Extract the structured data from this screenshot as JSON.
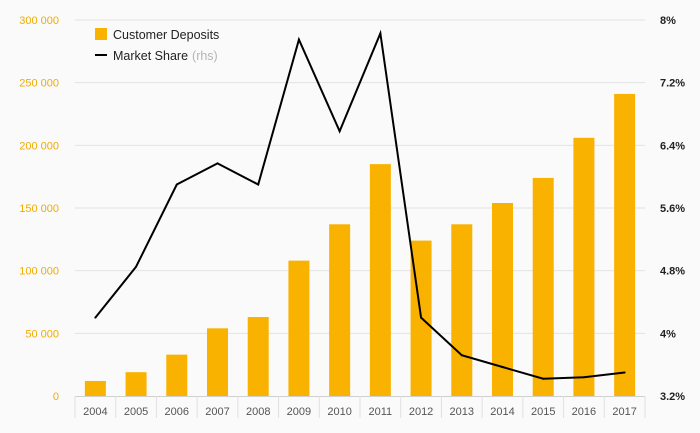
{
  "chart_data": {
    "type": "bar",
    "title": "",
    "categories": [
      "2004",
      "2005",
      "2006",
      "2007",
      "2008",
      "2009",
      "2010",
      "2011",
      "2012",
      "2013",
      "2014",
      "2015",
      "2016",
      "2017"
    ],
    "series": [
      {
        "name": "Customer Deposits",
        "type": "bar",
        "axis": "left",
        "color": "#f9b200",
        "values": [
          12000,
          19000,
          33000,
          54000,
          63000,
          108000,
          137000,
          185000,
          124000,
          137000,
          154000,
          174000,
          206000,
          241000
        ]
      },
      {
        "name": "Market Share",
        "legend_suffix": "(rhs)",
        "type": "line",
        "axis": "right",
        "color": "#000000",
        "values": [
          4.2,
          4.85,
          5.9,
          6.17,
          5.9,
          7.75,
          6.58,
          7.83,
          4.2,
          3.72,
          3.57,
          3.42,
          3.44,
          3.5
        ]
      }
    ],
    "y_left": {
      "min": 0,
      "max": 300000,
      "ticks": [
        0,
        50000,
        100000,
        150000,
        200000,
        250000,
        300000
      ],
      "tick_labels": [
        "0",
        "50 000",
        "100 000",
        "150 000",
        "200 000",
        "250 000",
        "300 000"
      ],
      "color": "#f0ac00"
    },
    "y_right": {
      "min": 3.2,
      "max": 8.0,
      "ticks": [
        3.2,
        4.0,
        4.8,
        5.6,
        6.4,
        7.2,
        8.0
      ],
      "tick_labels": [
        "3.2%",
        "4%",
        "4.8%",
        "5.6%",
        "6.4%",
        "7.2%",
        "8%"
      ],
      "color": "#222222"
    },
    "grid": {
      "horizontal": true,
      "vertical_separators": true
    },
    "legend": {
      "position": "top-left"
    }
  }
}
